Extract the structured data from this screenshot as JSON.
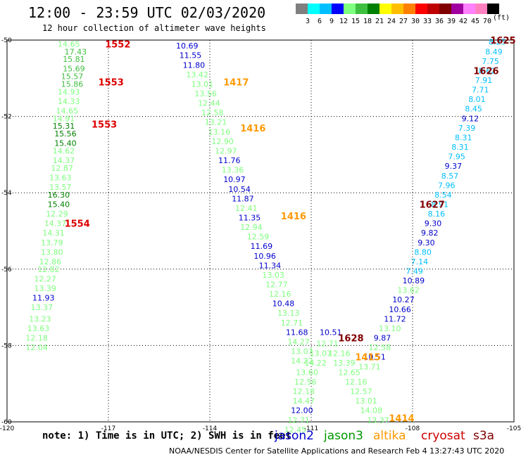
{
  "title": "12:00 - 23:59 UTC 02/03/2020",
  "subtitle": "12 hour collection of altimeter wave heights",
  "colorscale": {
    "labels": [
      "3",
      "6",
      "9",
      "12",
      "15",
      "18",
      "21",
      "24",
      "27",
      "30",
      "33",
      "36",
      "39",
      "42",
      "45",
      "70"
    ],
    "unit": "(ft)",
    "colors": [
      "#7f7f7f",
      "#00ffff",
      "#00bfff",
      "#0000ff",
      "#7fff7f",
      "#3fbf3f",
      "#008000",
      "#ffff00",
      "#ffbf00",
      "#ff8000",
      "#ff0000",
      "#bf0000",
      "#800000",
      "#a000a0",
      "#ff80ff",
      "#ff80c0",
      "#000000"
    ]
  },
  "axes": {
    "x_ticks": [
      "-120",
      "-117",
      "-114",
      "-111",
      "-108",
      "-105"
    ],
    "y_ticks": [
      "-50",
      "-52",
      "-54",
      "-56",
      "-58",
      "-60"
    ]
  },
  "note": "note: 1) Time is in UTC; 2) SWH is in feet",
  "legend": [
    {
      "name": "jason2",
      "color": "#0000cc"
    },
    {
      "name": "jason3",
      "color": "#009900"
    },
    {
      "name": "altika",
      "color": "#ff9900"
    },
    {
      "name": "cryosat",
      "color": "#cc0000"
    },
    {
      "name": "s3a",
      "color": "#800000"
    }
  ],
  "credit": "NOAA/NESDIS Center for Satellite Applications and Research   Feb  4 13:27:43 UTC 2020",
  "chart_data": {
    "type": "scatter",
    "xlabel": "",
    "ylabel": "",
    "xlim": [
      -120,
      -105
    ],
    "ylim": [
      -60,
      -50
    ],
    "track_labels": [
      {
        "text": "1552",
        "lon": -117.1,
        "lat": -50.1,
        "color": "#dd0000"
      },
      {
        "text": "1553",
        "lon": -117.3,
        "lat": -51.1,
        "color": "#dd0000"
      },
      {
        "text": "1553",
        "lon": -117.5,
        "lat": -52.2,
        "color": "#dd0000"
      },
      {
        "text": "1554",
        "lon": -118.3,
        "lat": -54.8,
        "color": "#dd0000"
      },
      {
        "text": "1417",
        "lon": -113.6,
        "lat": -51.1,
        "color": "#ff9900"
      },
      {
        "text": "1416",
        "lon": -113.1,
        "lat": -52.3,
        "color": "#ff9900"
      },
      {
        "text": "1416",
        "lon": -111.9,
        "lat": -54.6,
        "color": "#ff9900"
      },
      {
        "text": "1415",
        "lon": -109.7,
        "lat": -58.3,
        "color": "#ff9900"
      },
      {
        "text": "1414",
        "lon": -108.7,
        "lat": -59.9,
        "color": "#ff9900"
      },
      {
        "text": "1628",
        "lon": -110.2,
        "lat": -57.8,
        "color": "#800000"
      },
      {
        "text": "1627",
        "lon": -107.8,
        "lat": -54.3,
        "color": "#800000"
      },
      {
        "text": "1626",
        "lon": -106.2,
        "lat": -50.8,
        "color": "#800000"
      },
      {
        "text": "1625",
        "lon": -105.7,
        "lat": -50.0,
        "color": "#800000"
      }
    ],
    "series": [
      {
        "values": [
          {
            "lon": -118.5,
            "lat": -50.1,
            "v": "14.65",
            "c": "#7fff7f"
          },
          {
            "lon": -118.3,
            "lat": -50.3,
            "v": "17.43",
            "c": "#3fbf3f"
          },
          {
            "lon": -118.35,
            "lat": -50.5,
            "v": "15.81",
            "c": "#3fbf3f"
          },
          {
            "lon": -118.35,
            "lat": -50.75,
            "v": "15.69",
            "c": "#3fbf3f"
          },
          {
            "lon": -118.4,
            "lat": -50.95,
            "v": "15.57",
            "c": "#3fbf3f"
          },
          {
            "lon": -118.4,
            "lat": -51.15,
            "v": "15.86",
            "c": "#3fbf3f"
          },
          {
            "lon": -118.5,
            "lat": -51.35,
            "v": "14.93",
            "c": "#7fff7f"
          },
          {
            "lon": -118.5,
            "lat": -51.6,
            "v": "14.33",
            "c": "#7fff7f"
          },
          {
            "lon": -118.55,
            "lat": -51.85,
            "v": "14.65",
            "c": "#7fff7f"
          },
          {
            "lon": -118.65,
            "lat": -52.05,
            "v": "14.91",
            "c": "#7fff7f"
          },
          {
            "lon": -118.65,
            "lat": -52.25,
            "v": "15.31",
            "c": "#008000"
          },
          {
            "lon": -118.6,
            "lat": -52.45,
            "v": "15.56",
            "c": "#008000"
          },
          {
            "lon": -118.6,
            "lat": -52.7,
            "v": "15.40",
            "c": "#008000"
          },
          {
            "lon": -118.65,
            "lat": -52.9,
            "v": "14.62",
            "c": "#7fff7f"
          },
          {
            "lon": -118.65,
            "lat": -53.15,
            "v": "14.37",
            "c": "#7fff7f"
          },
          {
            "lon": -118.7,
            "lat": -53.35,
            "v": "12.87",
            "c": "#7fff7f"
          },
          {
            "lon": -118.75,
            "lat": -53.6,
            "v": "13.63",
            "c": "#7fff7f"
          },
          {
            "lon": -118.75,
            "lat": -53.85,
            "v": "13.57",
            "c": "#7fff7f"
          },
          {
            "lon": -118.8,
            "lat": -54.05,
            "v": "16.30",
            "c": "#008000"
          },
          {
            "lon": -118.8,
            "lat": -54.3,
            "v": "15.40",
            "c": "#008000"
          },
          {
            "lon": -118.85,
            "lat": -54.55,
            "v": "12.29",
            "c": "#7fff7f"
          },
          {
            "lon": -118.9,
            "lat": -54.8,
            "v": "14.37",
            "c": "#7fff7f"
          },
          {
            "lon": -118.95,
            "lat": -55.05,
            "v": "14.31",
            "c": "#7fff7f"
          },
          {
            "lon": -119.0,
            "lat": -55.3,
            "v": "13.79",
            "c": "#7fff7f"
          },
          {
            "lon": -119.0,
            "lat": -55.55,
            "v": "13.80",
            "c": "#7fff7f"
          },
          {
            "lon": -119.05,
            "lat": -55.8,
            "v": "12.86",
            "c": "#7fff7f"
          },
          {
            "lon": -119.1,
            "lat": -56.0,
            "v": "12.82",
            "c": "#7fff7f"
          },
          {
            "lon": -119.2,
            "lat": -56.25,
            "v": "12.27",
            "c": "#7fff7f"
          },
          {
            "lon": -119.2,
            "lat": -56.5,
            "v": "13.39",
            "c": "#7fff7f"
          },
          {
            "lon": -119.25,
            "lat": -56.75,
            "v": "11.93",
            "c": "#0000cc"
          },
          {
            "lon": -119.3,
            "lat": -57.0,
            "v": "13.37",
            "c": "#7fff7f"
          },
          {
            "lon": -119.35,
            "lat": -57.3,
            "v": "13.23",
            "c": "#7fff7f"
          },
          {
            "lon": -119.4,
            "lat": -57.55,
            "v": "13.63",
            "c": "#7fff7f"
          },
          {
            "lon": -119.45,
            "lat": -57.8,
            "v": "12.18",
            "c": "#7fff7f"
          },
          {
            "lon": -119.45,
            "lat": -58.05,
            "v": "12.04",
            "c": "#7fff7f"
          }
        ]
      },
      {
        "values": [
          {
            "lon": -115.0,
            "lat": -50.15,
            "v": "10.69",
            "c": "#0000cc"
          },
          {
            "lon": -114.9,
            "lat": -50.4,
            "v": "11.55",
            "c": "#0000cc"
          },
          {
            "lon": -114.8,
            "lat": -50.65,
            "v": "11.80",
            "c": "#0000cc"
          },
          {
            "lon": -114.7,
            "lat": -50.9,
            "v": "13.42",
            "c": "#7fff7f"
          },
          {
            "lon": -114.55,
            "lat": -51.15,
            "v": "13.01",
            "c": "#7fff7f"
          },
          {
            "lon": -114.45,
            "lat": -51.4,
            "v": "13.56",
            "c": "#7fff7f"
          },
          {
            "lon": -114.35,
            "lat": -51.65,
            "v": "12.44",
            "c": "#7fff7f"
          },
          {
            "lon": -114.25,
            "lat": -51.9,
            "v": "12.58",
            "c": "#7fff7f"
          },
          {
            "lon": -114.15,
            "lat": -52.15,
            "v": "13.21",
            "c": "#7fff7f"
          },
          {
            "lon": -114.05,
            "lat": -52.4,
            "v": "13.16",
            "c": "#7fff7f"
          },
          {
            "lon": -113.95,
            "lat": -52.65,
            "v": "12.90",
            "c": "#7fff7f"
          },
          {
            "lon": -113.85,
            "lat": -52.9,
            "v": "12.97",
            "c": "#7fff7f"
          },
          {
            "lon": -113.75,
            "lat": -53.15,
            "v": "11.76",
            "c": "#0000cc"
          },
          {
            "lon": -113.65,
            "lat": -53.4,
            "v": "13.36",
            "c": "#7fff7f"
          },
          {
            "lon": -113.6,
            "lat": -53.65,
            "v": "10.97",
            "c": "#0000cc"
          },
          {
            "lon": -113.45,
            "lat": -53.9,
            "v": "10.54",
            "c": "#0000cc"
          },
          {
            "lon": -113.35,
            "lat": -54.15,
            "v": "11.87",
            "c": "#0000cc"
          },
          {
            "lon": -113.25,
            "lat": -54.4,
            "v": "12.41",
            "c": "#7fff7f"
          },
          {
            "lon": -113.15,
            "lat": -54.65,
            "v": "11.35",
            "c": "#0000cc"
          },
          {
            "lon": -113.1,
            "lat": -54.9,
            "v": "12.94",
            "c": "#7fff7f"
          },
          {
            "lon": -112.9,
            "lat": -55.15,
            "v": "12.59",
            "c": "#7fff7f"
          },
          {
            "lon": -112.8,
            "lat": -55.4,
            "v": "11.69",
            "c": "#0000cc"
          },
          {
            "lon": -112.7,
            "lat": -55.65,
            "v": "10.96",
            "c": "#0000cc"
          },
          {
            "lon": -112.55,
            "lat": -55.9,
            "v": "11.34",
            "c": "#0000cc"
          },
          {
            "lon": -112.45,
            "lat": -56.15,
            "v": "13.03",
            "c": "#7fff7f"
          },
          {
            "lon": -112.35,
            "lat": -56.4,
            "v": "12.77",
            "c": "#7fff7f"
          },
          {
            "lon": -112.25,
            "lat": -56.65,
            "v": "12.16",
            "c": "#7fff7f"
          },
          {
            "lon": -112.15,
            "lat": -56.9,
            "v": "10.48",
            "c": "#0000cc"
          },
          {
            "lon": -112.0,
            "lat": -57.15,
            "v": "13.13",
            "c": "#7fff7f"
          },
          {
            "lon": -111.9,
            "lat": -57.4,
            "v": "12.71",
            "c": "#7fff7f"
          },
          {
            "lon": -111.75,
            "lat": -57.65,
            "v": "11.68",
            "c": "#0000cc"
          },
          {
            "lon": -111.7,
            "lat": -57.9,
            "v": "14.27",
            "c": "#7fff7f"
          },
          {
            "lon": -111.6,
            "lat": -58.15,
            "v": "13.07",
            "c": "#7fff7f"
          },
          {
            "lon": -111.6,
            "lat": -58.4,
            "v": "14.22",
            "c": "#7fff7f"
          }
        ]
      },
      {
        "values": [
          {
            "lon": -105.75,
            "lat": -50.05,
            "v": "8.25",
            "c": "#00bfff"
          },
          {
            "lon": -105.85,
            "lat": -50.3,
            "v": "8.49",
            "c": "#00bfff"
          },
          {
            "lon": -105.95,
            "lat": -50.55,
            "v": "7.75",
            "c": "#00bfff"
          },
          {
            "lon": -106.05,
            "lat": -50.8,
            "v": "8.62",
            "c": "#00bfff"
          },
          {
            "lon": -106.15,
            "lat": -51.05,
            "v": "7.91",
            "c": "#00bfff"
          },
          {
            "lon": -106.25,
            "lat": -51.3,
            "v": "7.71",
            "c": "#00bfff"
          },
          {
            "lon": -106.35,
            "lat": -51.55,
            "v": "8.01",
            "c": "#00bfff"
          },
          {
            "lon": -106.45,
            "lat": -51.8,
            "v": "8.45",
            "c": "#00bfff"
          },
          {
            "lon": -106.55,
            "lat": -52.05,
            "v": "9.12",
            "c": "#0000cc"
          },
          {
            "lon": -106.65,
            "lat": -52.3,
            "v": "7.39",
            "c": "#00bfff"
          },
          {
            "lon": -106.75,
            "lat": -52.55,
            "v": "8.31",
            "c": "#00bfff"
          },
          {
            "lon": -106.85,
            "lat": -52.8,
            "v": "8.31",
            "c": "#00bfff"
          },
          {
            "lon": -106.95,
            "lat": -53.05,
            "v": "7.95",
            "c": "#00bfff"
          },
          {
            "lon": -107.05,
            "lat": -53.3,
            "v": "9.37",
            "c": "#0000cc"
          },
          {
            "lon": -107.15,
            "lat": -53.55,
            "v": "8.57",
            "c": "#00bfff"
          },
          {
            "lon": -107.25,
            "lat": -53.8,
            "v": "7.96",
            "c": "#00bfff"
          },
          {
            "lon": -107.35,
            "lat": -54.05,
            "v": "8.54",
            "c": "#00bfff"
          },
          {
            "lon": -107.45,
            "lat": -54.3,
            "v": "8.91",
            "c": "#00bfff"
          },
          {
            "lon": -107.55,
            "lat": -54.55,
            "v": "8.16",
            "c": "#00bfff"
          },
          {
            "lon": -107.65,
            "lat": -54.8,
            "v": "9.30",
            "c": "#0000cc"
          },
          {
            "lon": -107.75,
            "lat": -55.05,
            "v": "9.82",
            "c": "#0000cc"
          },
          {
            "lon": -107.85,
            "lat": -55.3,
            "v": "9.30",
            "c": "#0000cc"
          },
          {
            "lon": -107.95,
            "lat": -55.55,
            "v": "8.80",
            "c": "#00bfff"
          },
          {
            "lon": -108.05,
            "lat": -55.8,
            "v": "7.14",
            "c": "#00bfff"
          },
          {
            "lon": -108.2,
            "lat": -56.05,
            "v": "7.49",
            "c": "#00bfff"
          },
          {
            "lon": -108.3,
            "lat": -56.3,
            "v": "10.89",
            "c": "#0000cc"
          },
          {
            "lon": -108.45,
            "lat": -56.55,
            "v": "13.62",
            "c": "#7fff7f"
          },
          {
            "lon": -108.6,
            "lat": -56.8,
            "v": "10.27",
            "c": "#0000cc"
          },
          {
            "lon": -108.7,
            "lat": -57.05,
            "v": "10.66",
            "c": "#0000cc"
          },
          {
            "lon": -108.85,
            "lat": -57.3,
            "v": "11.72",
            "c": "#0000cc"
          },
          {
            "lon": -109.0,
            "lat": -57.55,
            "v": "13.10",
            "c": "#7fff7f"
          },
          {
            "lon": -109.15,
            "lat": -57.8,
            "v": "9.87",
            "c": "#0000cc"
          },
          {
            "lon": -109.3,
            "lat": -58.05,
            "v": "12.58",
            "c": "#7fff7f"
          },
          {
            "lon": -109.45,
            "lat": -58.3,
            "v": "10.51",
            "c": "#0000cc"
          },
          {
            "lon": -109.6,
            "lat": -58.55,
            "v": "13.71",
            "c": "#7fff7f"
          }
        ]
      },
      {
        "values": [
          {
            "lon": -111.45,
            "lat": -58.7,
            "v": "13.60",
            "c": "#7fff7f"
          },
          {
            "lon": -111.5,
            "lat": -58.95,
            "v": "12.56",
            "c": "#7fff7f"
          },
          {
            "lon": -111.55,
            "lat": -59.2,
            "v": "12.18",
            "c": "#7fff7f"
          },
          {
            "lon": -111.55,
            "lat": -59.45,
            "v": "14.47",
            "c": "#7fff7f"
          },
          {
            "lon": -111.6,
            "lat": -59.7,
            "v": "12.00",
            "c": "#0000cc"
          },
          {
            "lon": -111.7,
            "lat": -59.95,
            "v": "12.71",
            "c": "#7fff7f"
          },
          {
            "lon": -111.8,
            "lat": -60.2,
            "v": "12.45",
            "c": "#7fff7f"
          },
          {
            "lon": -110.5,
            "lat": -58.2,
            "v": "12.16",
            "c": "#7fff7f"
          },
          {
            "lon": -110.35,
            "lat": -58.45,
            "v": "13.39",
            "c": "#7fff7f"
          },
          {
            "lon": -110.2,
            "lat": -58.7,
            "v": "12.65",
            "c": "#7fff7f"
          },
          {
            "lon": -110.0,
            "lat": -58.95,
            "v": "12.16",
            "c": "#7fff7f"
          },
          {
            "lon": -109.85,
            "lat": -59.2,
            "v": "12.57",
            "c": "#7fff7f"
          },
          {
            "lon": -109.7,
            "lat": -59.45,
            "v": "13.01",
            "c": "#7fff7f"
          },
          {
            "lon": -109.55,
            "lat": -59.7,
            "v": "14.08",
            "c": "#7fff7f"
          },
          {
            "lon": -109.35,
            "lat": -59.95,
            "v": "13.37",
            "c": "#7fff7f"
          },
          {
            "lon": -110.85,
            "lat": -57.95,
            "v": "12.71",
            "c": "#7fff7f"
          },
          {
            "lon": -110.75,
            "lat": -57.65,
            "v": "10.51",
            "c": "#0000cc"
          },
          {
            "lon": -111.05,
            "lat": -58.2,
            "v": "13.07",
            "c": "#7fff7f"
          },
          {
            "lon": -111.2,
            "lat": -58.45,
            "v": "14.22",
            "c": "#7fff7f"
          }
        ]
      }
    ]
  }
}
